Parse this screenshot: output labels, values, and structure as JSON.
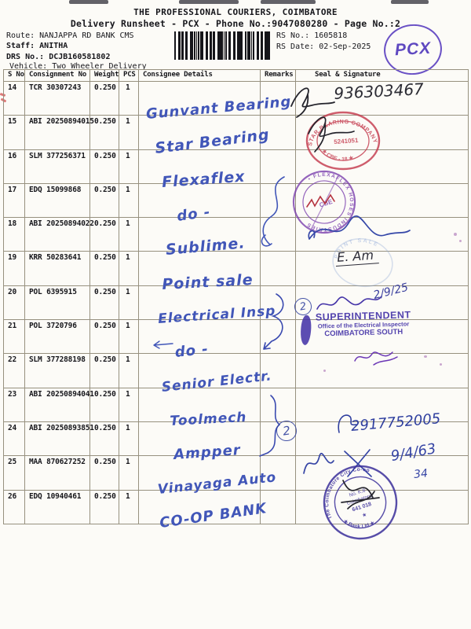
{
  "doc": {
    "title": "THE PROFESSIONAL COURIERS, COIMBATORE",
    "subtitle": "Delivery Runsheet - PCX - Phone No.:9047080280 - Page No.:2",
    "info": {
      "route_label": "Route:",
      "route_value": "NANJAPPA RD BANK CMS",
      "staff_label": "Staff:",
      "staff_value": "ANITHA",
      "drs_label": "DRS No.:",
      "drs_value": "DCJB160581802",
      "vehicle_label": "Vehicle:",
      "vehicle_value": "Two Wheeler Delivery",
      "rs_no_label": "RS No.:",
      "rs_no_value": "1605818",
      "rs_date_label": "RS Date:",
      "rs_date_value": "02-Sep-2025"
    },
    "pcx_stamp_text": "PCX"
  },
  "table": {
    "columns": [
      "S No",
      "Consignment No",
      "Weight",
      "PCS",
      "Consignee Details",
      "Remarks",
      "Seal & Signature"
    ],
    "rows": [
      {
        "sno": "14",
        "consignment": "TCR 30307243",
        "weight": "0.250",
        "pcs": "1",
        "consignee_handwritten": "Gunvant Bearing"
      },
      {
        "sno": "15",
        "consignment": "ABI 20250894015",
        "weight": "0.250",
        "pcs": "1",
        "consignee_handwritten": "Star Bearing"
      },
      {
        "sno": "16",
        "consignment": "SLM 377256371",
        "weight": "0.250",
        "pcs": "1",
        "consignee_handwritten": "Flexaflex"
      },
      {
        "sno": "17",
        "consignment": "EDQ 15099868",
        "weight": "0.250",
        "pcs": "1",
        "consignee_handwritten": "do -"
      },
      {
        "sno": "18",
        "consignment": "ABI 20250894022",
        "weight": "0.250",
        "pcs": "1",
        "consignee_handwritten": "Sublime."
      },
      {
        "sno": "19",
        "consignment": "KRR 50283641",
        "weight": "0.250",
        "pcs": "1",
        "consignee_handwritten": "Point sale"
      },
      {
        "sno": "20",
        "consignment": "POL 6395915",
        "weight": "0.250",
        "pcs": "1",
        "consignee_handwritten": "Electrical Insp"
      },
      {
        "sno": "21",
        "consignment": "POL 3720796",
        "weight": "0.250",
        "pcs": "1",
        "consignee_handwritten": "do -"
      },
      {
        "sno": "22",
        "consignment": "SLM 377288198",
        "weight": "0.250",
        "pcs": "1",
        "consignee_handwritten": "Senior Electr."
      },
      {
        "sno": "23",
        "consignment": "ABI 20250894041",
        "weight": "0.250",
        "pcs": "1",
        "consignee_handwritten": "Toolmech"
      },
      {
        "sno": "24",
        "consignment": "ABI 20250893851",
        "weight": "0.250",
        "pcs": "1",
        "consignee_handwritten": "Ampper"
      },
      {
        "sno": "25",
        "consignment": "MAA 870627252",
        "weight": "0.250",
        "pcs": "1",
        "consignee_handwritten": "Vinayaga Auto"
      },
      {
        "sno": "26",
        "consignment": "EDQ 10940461",
        "weight": "0.250",
        "pcs": "1",
        "consignee_handwritten": "CO-OP BANK"
      }
    ]
  },
  "annotations": {
    "sig14_number": "936303467",
    "stamp_star_bearing": {
      "arc_top": "STAR BEARING COMPANY",
      "arc_bottom": "★ CBE - 18 ★",
      "inner": "5241051",
      "color": "#c43b4e"
    },
    "stamp_flexaflex": {
      "arc": "• FLEXAFLEX HOSES INDUSTRIES",
      "inner": "CBE",
      "color": "#7b3fae"
    },
    "stamp_point_sale": {
      "arc": "POINT SALE",
      "color": "#8aa3d6"
    },
    "note_e_am": "E. Am",
    "circled_number_1": "2",
    "circled_number_2": "2",
    "sig_date_superintendent": "2/9/25",
    "stamp_superintendent": {
      "line1": "SUPERINTENDENT",
      "line2": "Office of the Electrical Inspector",
      "line3": "COIMBATORE SOUTH",
      "color": "#4534a8"
    },
    "sig24_number": "2917752005",
    "sig25_date": "9/4/63",
    "sig25_extra": "34",
    "stamp_bank": {
      "arc_top": "The Coimbatore City Co-op",
      "arc_bottom": "★ Bank Ltd ★",
      "inner1": "No. K.8",
      "inner2": "Coimbatore",
      "inner3": "641 018",
      "inner4": "★",
      "color": "#3b2f9b"
    }
  }
}
